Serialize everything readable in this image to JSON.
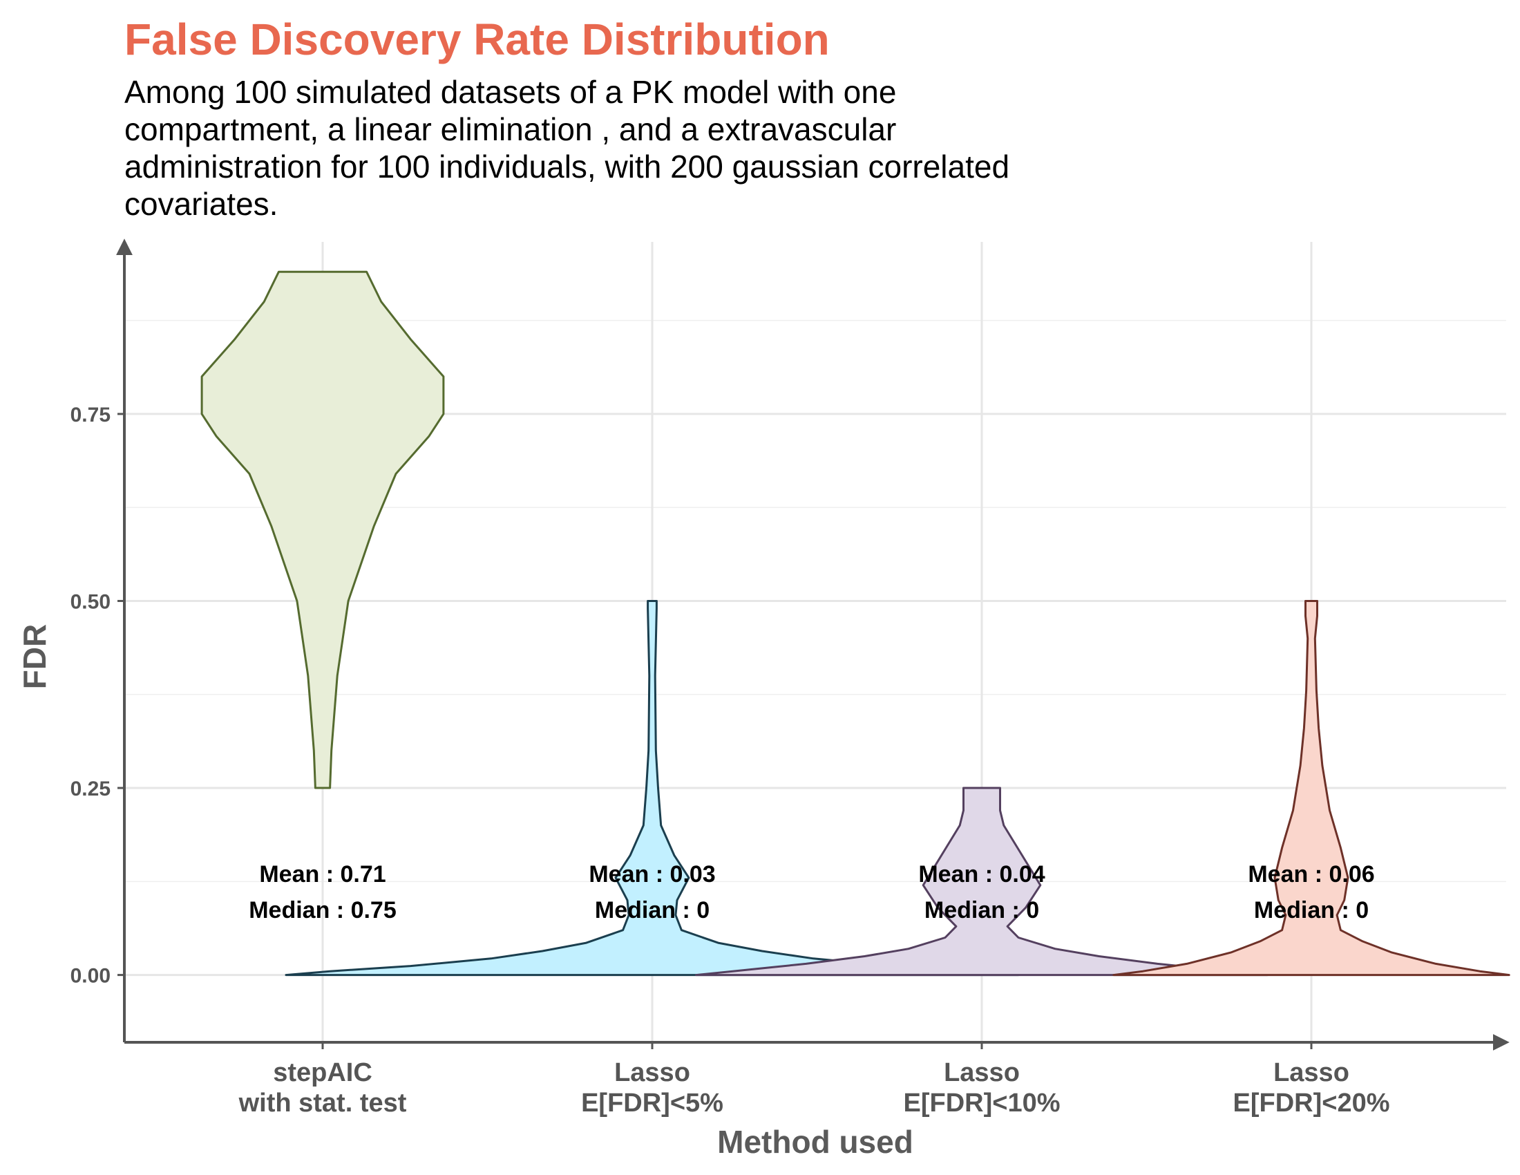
{
  "chart_data": {
    "type": "violin",
    "title": "False Discovery Rate Distribution",
    "subtitle": "Among 100 simulated datasets of a PK model with one compartment, a linear elimination , and a extravascular administration for 100 individuals, with 200 gaussian correlated covariates.",
    "xlabel": "Method used",
    "ylabel": "FDR",
    "ylim": [
      -0.09,
      0.98
    ],
    "yticks": [
      0.0,
      0.25,
      0.5,
      0.75
    ],
    "ytick_labels": [
      "0.00",
      "0.25",
      "0.50",
      "0.75"
    ],
    "grid": true,
    "legend": "none",
    "categories": [
      {
        "label_line1": "stepAIC",
        "label_line2": "with stat. test",
        "fill": "#e8eed8",
        "stroke": "#556b2f",
        "mean_text": "Mean : 0.71",
        "median_text": "Median : 0.75",
        "profile": [
          [
            0.25,
            0.01
          ],
          [
            0.3,
            0.012
          ],
          [
            0.4,
            0.02
          ],
          [
            0.5,
            0.035
          ],
          [
            0.6,
            0.07
          ],
          [
            0.67,
            0.1
          ],
          [
            0.72,
            0.145
          ],
          [
            0.75,
            0.165
          ],
          [
            0.8,
            0.165
          ],
          [
            0.85,
            0.12
          ],
          [
            0.9,
            0.08
          ],
          [
            0.94,
            0.06
          ]
        ]
      },
      {
        "label_line1": "Lasso",
        "label_line2": "E[FDR]<5%",
        "fill": "#c2f0ff",
        "stroke": "#1b3f4f",
        "mean_text": "Mean : 0.03",
        "median_text": "Median : 0",
        "profile": [
          [
            0.0,
            0.5
          ],
          [
            0.005,
            0.44
          ],
          [
            0.012,
            0.33
          ],
          [
            0.022,
            0.22
          ],
          [
            0.032,
            0.15
          ],
          [
            0.043,
            0.09
          ],
          [
            0.06,
            0.04
          ],
          [
            0.08,
            0.032
          ],
          [
            0.1,
            0.034
          ],
          [
            0.13,
            0.05
          ],
          [
            0.16,
            0.03
          ],
          [
            0.2,
            0.012
          ],
          [
            0.25,
            0.008
          ],
          [
            0.3,
            0.005
          ],
          [
            0.4,
            0.004
          ],
          [
            0.49,
            0.006
          ],
          [
            0.5,
            0.006
          ]
        ]
      },
      {
        "label_line1": "Lasso",
        "label_line2": "E[FDR]<10%",
        "fill": "#e0d8e8",
        "stroke": "#54405f",
        "mean_text": "Mean : 0.04",
        "median_text": "Median : 0",
        "profile": [
          [
            0.0,
            0.39
          ],
          [
            0.005,
            0.34
          ],
          [
            0.015,
            0.24
          ],
          [
            0.025,
            0.16
          ],
          [
            0.035,
            0.1
          ],
          [
            0.05,
            0.05
          ],
          [
            0.065,
            0.035
          ],
          [
            0.09,
            0.06
          ],
          [
            0.12,
            0.08
          ],
          [
            0.16,
            0.055
          ],
          [
            0.2,
            0.03
          ],
          [
            0.22,
            0.025
          ],
          [
            0.25,
            0.025
          ]
        ]
      },
      {
        "label_line1": "Lasso",
        "label_line2": "E[FDR]<20%",
        "fill": "#fad6cc",
        "stroke": "#6e3128",
        "mean_text": "Mean : 0.06",
        "median_text": "Median : 0",
        "profile": [
          [
            0.0,
            0.27
          ],
          [
            0.005,
            0.23
          ],
          [
            0.015,
            0.17
          ],
          [
            0.03,
            0.11
          ],
          [
            0.045,
            0.07
          ],
          [
            0.06,
            0.04
          ],
          [
            0.08,
            0.035
          ],
          [
            0.1,
            0.045
          ],
          [
            0.13,
            0.05
          ],
          [
            0.17,
            0.04
          ],
          [
            0.22,
            0.025
          ],
          [
            0.28,
            0.015
          ],
          [
            0.33,
            0.01
          ],
          [
            0.38,
            0.007
          ],
          [
            0.45,
            0.005
          ],
          [
            0.48,
            0.008
          ],
          [
            0.5,
            0.008
          ]
        ]
      }
    ]
  }
}
